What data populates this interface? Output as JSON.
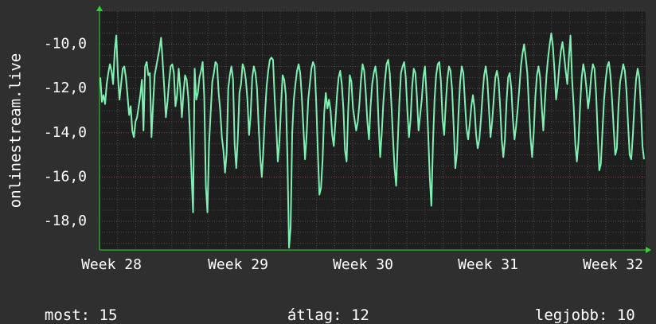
{
  "chart_data": {
    "type": "line",
    "ylabel": "onlinestream.live",
    "y_ticks": [
      -10,
      -12,
      -14,
      -16,
      -18
    ],
    "y_tick_labels": [
      "-10,0",
      "-12,0",
      "-14,0",
      "-16,0",
      "-18,0"
    ],
    "x_tick_labels": [
      "Week 28",
      "Week 29",
      "Week 30",
      "Week 31",
      "Week 32"
    ],
    "ylim": [
      -19.3,
      -8.5
    ],
    "grid": true,
    "colors": {
      "line": "#7ff0b4",
      "background": "#2f2f2f",
      "plot_bg": "#1e1e1e",
      "grid": "#5a5a5a",
      "axis": "#2bdb2b"
    },
    "series": [
      {
        "values": [
          -11.5,
          -12.6,
          -12.3,
          -12.7,
          -11.8,
          -11.3,
          -10.9,
          -11.2,
          -11.8,
          -10.3,
          -9.6,
          -11.4,
          -12.5,
          -11.8,
          -11.1,
          -11.0,
          -11.5,
          -12.3,
          -13.2,
          -12.8,
          -13.9,
          -14.2,
          -13.5,
          -13.3,
          -12.8,
          -12.3,
          -11.6,
          -13.9,
          -11.0,
          -10.8,
          -11.4,
          -11.3,
          -14.2,
          -12.7,
          -11.4,
          -11.0,
          -10.6,
          -10.2,
          -9.7,
          -10.8,
          -12.0,
          -13.3,
          -12.6,
          -11.7,
          -11.0,
          -10.9,
          -11.3,
          -12.8,
          -12.3,
          -11.1,
          -12.0,
          -13.3,
          -12.2,
          -11.4,
          -11.6,
          -12.4,
          -13.9,
          -15.8,
          -17.6,
          -11.1,
          -12.5,
          -12.2,
          -11.5,
          -11.2,
          -10.8,
          -12.4,
          -16.4,
          -17.6,
          -14.5,
          -13.1,
          -11.7,
          -11.3,
          -10.8,
          -10.9,
          -12.2,
          -13.0,
          -14.2,
          -14.8,
          -15.8,
          -14.9,
          -12.0,
          -11.4,
          -11.0,
          -11.6,
          -14.5,
          -15.6,
          -14.2,
          -12.2,
          -11.8,
          -10.9,
          -11.1,
          -11.6,
          -12.5,
          -14.1,
          -13.2,
          -11.5,
          -11.0,
          -11.3,
          -12.0,
          -13.7,
          -15.1,
          -16.0,
          -14.7,
          -13.1,
          -11.9,
          -11.2,
          -10.7,
          -10.6,
          -10.7,
          -12.4,
          -13.7,
          -15.3,
          -14.4,
          -12.8,
          -11.4,
          -11.6,
          -12.3,
          -15.1,
          -19.2,
          -18.3,
          -14.0,
          -12.5,
          -11.8,
          -11.2,
          -10.9,
          -11.3,
          -12.4,
          -13.8,
          -15.2,
          -14.1,
          -12.5,
          -11.8,
          -11.1,
          -10.8,
          -11.0,
          -12.6,
          -14.8,
          -16.8,
          -16.5,
          -15.2,
          -13.1,
          -12.2,
          -12.9,
          -12.5,
          -13.0,
          -14.1,
          -14.6,
          -13.5,
          -12.3,
          -11.5,
          -11.2,
          -11.8,
          -12.9,
          -14.8,
          -15.3,
          -13.0,
          -11.4,
          -11.7,
          -12.9,
          -13.4,
          -13.9,
          -13.5,
          -12.7,
          -11.6,
          -10.9,
          -11.2,
          -12.2,
          -13.5,
          -14.3,
          -12.8,
          -11.8,
          -11.3,
          -11.0,
          -11.6,
          -13.6,
          -15.1,
          -14.0,
          -12.6,
          -11.6,
          -10.9,
          -10.7,
          -11.3,
          -12.7,
          -14.2,
          -15.6,
          -16.4,
          -14.4,
          -12.6,
          -11.3,
          -11.0,
          -10.8,
          -11.5,
          -13.0,
          -14.2,
          -13.4,
          -11.9,
          -11.1,
          -11.3,
          -12.4,
          -13.9,
          -13.2,
          -12.5,
          -11.5,
          -11.0,
          -12.3,
          -14.0,
          -16.0,
          -17.3,
          -14.5,
          -12.5,
          -11.4,
          -10.9,
          -10.8,
          -11.7,
          -13.4,
          -14.1,
          -12.7,
          -11.6,
          -11.0,
          -11.2,
          -12.1,
          -13.8,
          -15.6,
          -14.9,
          -13.1,
          -11.7,
          -11.0,
          -11.3,
          -12.6,
          -13.8,
          -14.3,
          -13.6,
          -12.8,
          -12.3,
          -12.9,
          -14.1,
          -14.7,
          -14.3,
          -13.4,
          -12.3,
          -11.4,
          -11.0,
          -11.6,
          -12.9,
          -14.2,
          -13.5,
          -12.5,
          -11.5,
          -11.2,
          -11.6,
          -12.8,
          -14.3,
          -15.1,
          -14.3,
          -12.6,
          -11.5,
          -11.3,
          -12.0,
          -13.4,
          -14.3,
          -13.7,
          -12.9,
          -12.0,
          -11.0,
          -10.4,
          -10.0,
          -10.6,
          -11.3,
          -12.8,
          -14.2,
          -15.1,
          -14.0,
          -12.4,
          -11.4,
          -11.0,
          -11.5,
          -12.8,
          -13.9,
          -12.6,
          -11.4,
          -10.6,
          -10.0,
          -9.5,
          -10.1,
          -11.2,
          -12.5,
          -11.9,
          -11.0,
          -10.3,
          -9.9,
          -10.5,
          -11.2,
          -11.8,
          -10.6,
          -9.6,
          -11.6,
          -12.8,
          -14.5,
          -15.3,
          -14.4,
          -12.8,
          -11.5,
          -10.9,
          -11.3,
          -12.0,
          -12.9,
          -12.3,
          -11.4,
          -10.9,
          -11.1,
          -12.2,
          -14.0,
          -15.7,
          -15.4,
          -13.9,
          -12.5,
          -11.6,
          -11.0,
          -10.8,
          -11.4,
          -12.5,
          -13.8,
          -15.0,
          -14.7,
          -12.8,
          -11.7,
          -11.3,
          -10.9,
          -11.2,
          -12.1,
          -13.6,
          -15.0,
          -15.2,
          -14.1,
          -12.7,
          -11.6,
          -11.1,
          -11.5,
          -12.8,
          -14.6,
          -15.2
        ]
      }
    ]
  },
  "footer": {
    "current_label": "most:",
    "current_value": "15",
    "average_label": "átlag:",
    "average_value": "12",
    "best_label": "legjobb:",
    "best_value": "10"
  }
}
